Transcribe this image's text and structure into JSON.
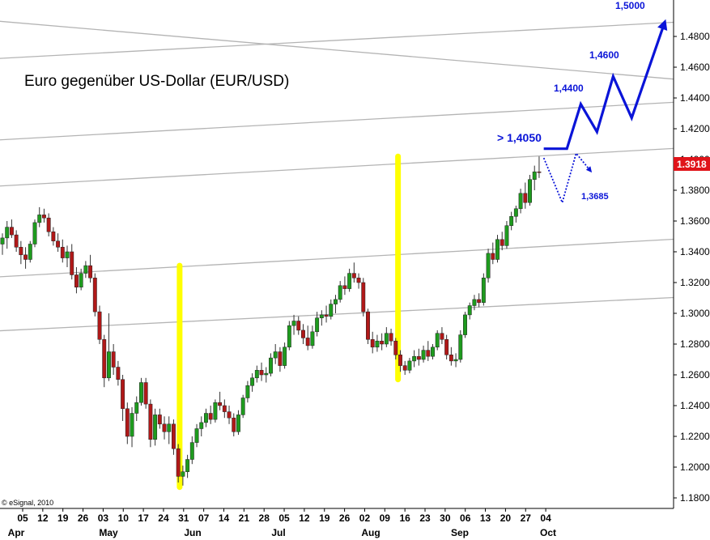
{
  "chart_data": {
    "type": "candlestick",
    "title": "Euro gegenüber US-Dollar  (EUR/USD)",
    "source": "© eSignal, 2010",
    "ylim": [
      1.18,
      1.49
    ],
    "y_ticks": [
      "1.1800",
      "1.2000",
      "1.2200",
      "1.2400",
      "1.2600",
      "1.2800",
      "1.3000",
      "1.3200",
      "1.3400",
      "1.3600",
      "1.3800",
      "1.4000",
      "1.4200",
      "1.4400",
      "1.4600",
      "1.4800"
    ],
    "x_day_ticks": [
      "05",
      "12",
      "19",
      "26",
      "03",
      "10",
      "17",
      "24",
      "31",
      "07",
      "14",
      "21",
      "28",
      "05",
      "12",
      "19",
      "26",
      "02",
      "09",
      "16",
      "23",
      "30",
      "06",
      "13",
      "20",
      "27",
      "04"
    ],
    "x_month_labels": [
      "Apr",
      "May",
      "Jun",
      "Jul",
      "Aug",
      "Sep",
      "Oct"
    ],
    "last_price": "1.3918",
    "annotations": {
      "resistance": "> 1,4050",
      "target1": "1,4400",
      "target2": "1,4600",
      "target3": "1,5000",
      "down": "1,3685"
    },
    "colors": {
      "bull": "#1e9b1e",
      "bear": "#b01818",
      "trendline": "#b4b4b4",
      "highlight": "#ffff00",
      "projection": "#0a14d8",
      "last_price_bg": "#e0141a"
    },
    "candles": [
      {
        "o": 1.345,
        "h": 1.352,
        "l": 1.338,
        "c": 1.349
      },
      {
        "o": 1.349,
        "h": 1.36,
        "l": 1.342,
        "c": 1.356
      },
      {
        "o": 1.356,
        "h": 1.361,
        "l": 1.349,
        "c": 1.351
      },
      {
        "o": 1.351,
        "h": 1.354,
        "l": 1.34,
        "c": 1.343
      },
      {
        "o": 1.343,
        "h": 1.347,
        "l": 1.332,
        "c": 1.338
      },
      {
        "o": 1.338,
        "h": 1.343,
        "l": 1.329,
        "c": 1.335
      },
      {
        "o": 1.335,
        "h": 1.347,
        "l": 1.333,
        "c": 1.345
      },
      {
        "o": 1.345,
        "h": 1.361,
        "l": 1.343,
        "c": 1.359
      },
      {
        "o": 1.359,
        "h": 1.369,
        "l": 1.356,
        "c": 1.364
      },
      {
        "o": 1.364,
        "h": 1.368,
        "l": 1.359,
        "c": 1.362
      },
      {
        "o": 1.362,
        "h": 1.365,
        "l": 1.35,
        "c": 1.353
      },
      {
        "o": 1.353,
        "h": 1.356,
        "l": 1.344,
        "c": 1.347
      },
      {
        "o": 1.347,
        "h": 1.352,
        "l": 1.34,
        "c": 1.343
      },
      {
        "o": 1.343,
        "h": 1.348,
        "l": 1.333,
        "c": 1.336
      },
      {
        "o": 1.336,
        "h": 1.344,
        "l": 1.33,
        "c": 1.34
      },
      {
        "o": 1.34,
        "h": 1.345,
        "l": 1.322,
        "c": 1.325
      },
      {
        "o": 1.325,
        "h": 1.33,
        "l": 1.313,
        "c": 1.317
      },
      {
        "o": 1.317,
        "h": 1.329,
        "l": 1.315,
        "c": 1.326
      },
      {
        "o": 1.326,
        "h": 1.334,
        "l": 1.323,
        "c": 1.331
      },
      {
        "o": 1.331,
        "h": 1.338,
        "l": 1.32,
        "c": 1.323
      },
      {
        "o": 1.323,
        "h": 1.326,
        "l": 1.298,
        "c": 1.301
      },
      {
        "o": 1.301,
        "h": 1.305,
        "l": 1.28,
        "c": 1.283
      },
      {
        "o": 1.283,
        "h": 1.286,
        "l": 1.252,
        "c": 1.258
      },
      {
        "o": 1.258,
        "h": 1.3,
        "l": 1.256,
        "c": 1.275
      },
      {
        "o": 1.275,
        "h": 1.28,
        "l": 1.26,
        "c": 1.265
      },
      {
        "o": 1.265,
        "h": 1.269,
        "l": 1.253,
        "c": 1.257
      },
      {
        "o": 1.257,
        "h": 1.26,
        "l": 1.23,
        "c": 1.238
      },
      {
        "o": 1.238,
        "h": 1.242,
        "l": 1.215,
        "c": 1.22
      },
      {
        "o": 1.22,
        "h": 1.239,
        "l": 1.213,
        "c": 1.235
      },
      {
        "o": 1.235,
        "h": 1.246,
        "l": 1.23,
        "c": 1.242
      },
      {
        "o": 1.242,
        "h": 1.258,
        "l": 1.24,
        "c": 1.255
      },
      {
        "o": 1.255,
        "h": 1.258,
        "l": 1.238,
        "c": 1.241
      },
      {
        "o": 1.241,
        "h": 1.244,
        "l": 1.213,
        "c": 1.218
      },
      {
        "o": 1.218,
        "h": 1.238,
        "l": 1.214,
        "c": 1.234
      },
      {
        "o": 1.234,
        "h": 1.238,
        "l": 1.225,
        "c": 1.228
      },
      {
        "o": 1.228,
        "h": 1.233,
        "l": 1.218,
        "c": 1.223
      },
      {
        "o": 1.223,
        "h": 1.233,
        "l": 1.215,
        "c": 1.228
      },
      {
        "o": 1.228,
        "h": 1.231,
        "l": 1.208,
        "c": 1.212
      },
      {
        "o": 1.212,
        "h": 1.215,
        "l": 1.19,
        "c": 1.194
      },
      {
        "o": 1.194,
        "h": 1.201,
        "l": 1.188,
        "c": 1.197
      },
      {
        "o": 1.197,
        "h": 1.208,
        "l": 1.193,
        "c": 1.205
      },
      {
        "o": 1.205,
        "h": 1.22,
        "l": 1.202,
        "c": 1.216
      },
      {
        "o": 1.216,
        "h": 1.228,
        "l": 1.213,
        "c": 1.225
      },
      {
        "o": 1.225,
        "h": 1.233,
        "l": 1.22,
        "c": 1.229
      },
      {
        "o": 1.229,
        "h": 1.238,
        "l": 1.226,
        "c": 1.235
      },
      {
        "o": 1.235,
        "h": 1.24,
        "l": 1.228,
        "c": 1.231
      },
      {
        "o": 1.231,
        "h": 1.244,
        "l": 1.229,
        "c": 1.242
      },
      {
        "o": 1.242,
        "h": 1.249,
        "l": 1.237,
        "c": 1.24
      },
      {
        "o": 1.24,
        "h": 1.244,
        "l": 1.232,
        "c": 1.236
      },
      {
        "o": 1.236,
        "h": 1.24,
        "l": 1.228,
        "c": 1.232
      },
      {
        "o": 1.232,
        "h": 1.235,
        "l": 1.22,
        "c": 1.223
      },
      {
        "o": 1.223,
        "h": 1.237,
        "l": 1.221,
        "c": 1.234
      },
      {
        "o": 1.234,
        "h": 1.247,
        "l": 1.232,
        "c": 1.245
      },
      {
        "o": 1.245,
        "h": 1.256,
        "l": 1.242,
        "c": 1.253
      },
      {
        "o": 1.253,
        "h": 1.261,
        "l": 1.249,
        "c": 1.258
      },
      {
        "o": 1.258,
        "h": 1.266,
        "l": 1.255,
        "c": 1.263
      },
      {
        "o": 1.263,
        "h": 1.268,
        "l": 1.256,
        "c": 1.26
      },
      {
        "o": 1.26,
        "h": 1.265,
        "l": 1.255,
        "c": 1.261
      },
      {
        "o": 1.261,
        "h": 1.274,
        "l": 1.259,
        "c": 1.271
      },
      {
        "o": 1.271,
        "h": 1.28,
        "l": 1.267,
        "c": 1.275
      },
      {
        "o": 1.275,
        "h": 1.278,
        "l": 1.262,
        "c": 1.266
      },
      {
        "o": 1.266,
        "h": 1.281,
        "l": 1.264,
        "c": 1.278
      },
      {
        "o": 1.278,
        "h": 1.295,
        "l": 1.276,
        "c": 1.292
      },
      {
        "o": 1.292,
        "h": 1.299,
        "l": 1.286,
        "c": 1.295
      },
      {
        "o": 1.295,
        "h": 1.298,
        "l": 1.286,
        "c": 1.289
      },
      {
        "o": 1.289,
        "h": 1.293,
        "l": 1.28,
        "c": 1.284
      },
      {
        "o": 1.284,
        "h": 1.292,
        "l": 1.276,
        "c": 1.279
      },
      {
        "o": 1.279,
        "h": 1.292,
        "l": 1.277,
        "c": 1.288
      },
      {
        "o": 1.288,
        "h": 1.301,
        "l": 1.285,
        "c": 1.297
      },
      {
        "o": 1.297,
        "h": 1.302,
        "l": 1.292,
        "c": 1.299
      },
      {
        "o": 1.299,
        "h": 1.305,
        "l": 1.294,
        "c": 1.298
      },
      {
        "o": 1.298,
        "h": 1.309,
        "l": 1.296,
        "c": 1.306
      },
      {
        "o": 1.306,
        "h": 1.312,
        "l": 1.3,
        "c": 1.309
      },
      {
        "o": 1.309,
        "h": 1.321,
        "l": 1.307,
        "c": 1.318
      },
      {
        "o": 1.318,
        "h": 1.324,
        "l": 1.312,
        "c": 1.316
      },
      {
        "o": 1.316,
        "h": 1.329,
        "l": 1.314,
        "c": 1.326
      },
      {
        "o": 1.326,
        "h": 1.333,
        "l": 1.32,
        "c": 1.323
      },
      {
        "o": 1.323,
        "h": 1.326,
        "l": 1.316,
        "c": 1.32
      },
      {
        "o": 1.32,
        "h": 1.323,
        "l": 1.298,
        "c": 1.301
      },
      {
        "o": 1.301,
        "h": 1.303,
        "l": 1.28,
        "c": 1.283
      },
      {
        "o": 1.283,
        "h": 1.288,
        "l": 1.274,
        "c": 1.278
      },
      {
        "o": 1.278,
        "h": 1.286,
        "l": 1.275,
        "c": 1.282
      },
      {
        "o": 1.282,
        "h": 1.287,
        "l": 1.276,
        "c": 1.28
      },
      {
        "o": 1.28,
        "h": 1.291,
        "l": 1.278,
        "c": 1.287
      },
      {
        "o": 1.287,
        "h": 1.29,
        "l": 1.279,
        "c": 1.282
      },
      {
        "o": 1.282,
        "h": 1.284,
        "l": 1.27,
        "c": 1.273
      },
      {
        "o": 1.273,
        "h": 1.276,
        "l": 1.262,
        "c": 1.266
      },
      {
        "o": 1.266,
        "h": 1.269,
        "l": 1.26,
        "c": 1.263
      },
      {
        "o": 1.263,
        "h": 1.271,
        "l": 1.261,
        "c": 1.269
      },
      {
        "o": 1.269,
        "h": 1.276,
        "l": 1.265,
        "c": 1.272
      },
      {
        "o": 1.272,
        "h": 1.277,
        "l": 1.266,
        "c": 1.27
      },
      {
        "o": 1.27,
        "h": 1.279,
        "l": 1.268,
        "c": 1.276
      },
      {
        "o": 1.276,
        "h": 1.282,
        "l": 1.269,
        "c": 1.272
      },
      {
        "o": 1.272,
        "h": 1.28,
        "l": 1.27,
        "c": 1.278
      },
      {
        "o": 1.278,
        "h": 1.289,
        "l": 1.276,
        "c": 1.287
      },
      {
        "o": 1.287,
        "h": 1.291,
        "l": 1.28,
        "c": 1.283
      },
      {
        "o": 1.283,
        "h": 1.286,
        "l": 1.27,
        "c": 1.273
      },
      {
        "o": 1.273,
        "h": 1.278,
        "l": 1.266,
        "c": 1.269
      },
      {
        "o": 1.269,
        "h": 1.274,
        "l": 1.265,
        "c": 1.27
      },
      {
        "o": 1.27,
        "h": 1.289,
        "l": 1.268,
        "c": 1.286
      },
      {
        "o": 1.286,
        "h": 1.301,
        "l": 1.284,
        "c": 1.299
      },
      {
        "o": 1.299,
        "h": 1.307,
        "l": 1.296,
        "c": 1.305
      },
      {
        "o": 1.305,
        "h": 1.312,
        "l": 1.302,
        "c": 1.309
      },
      {
        "o": 1.309,
        "h": 1.313,
        "l": 1.304,
        "c": 1.307
      },
      {
        "o": 1.307,
        "h": 1.326,
        "l": 1.305,
        "c": 1.323
      },
      {
        "o": 1.323,
        "h": 1.342,
        "l": 1.32,
        "c": 1.339
      },
      {
        "o": 1.339,
        "h": 1.346,
        "l": 1.332,
        "c": 1.335
      },
      {
        "o": 1.335,
        "h": 1.351,
        "l": 1.333,
        "c": 1.348
      },
      {
        "o": 1.348,
        "h": 1.353,
        "l": 1.341,
        "c": 1.344
      },
      {
        "o": 1.344,
        "h": 1.36,
        "l": 1.342,
        "c": 1.357
      },
      {
        "o": 1.357,
        "h": 1.366,
        "l": 1.354,
        "c": 1.363
      },
      {
        "o": 1.363,
        "h": 1.37,
        "l": 1.359,
        "c": 1.368
      },
      {
        "o": 1.368,
        "h": 1.381,
        "l": 1.365,
        "c": 1.378
      },
      {
        "o": 1.378,
        "h": 1.385,
        "l": 1.368,
        "c": 1.372
      },
      {
        "o": 1.372,
        "h": 1.39,
        "l": 1.37,
        "c": 1.387
      },
      {
        "o": 1.387,
        "h": 1.396,
        "l": 1.38,
        "c": 1.392
      },
      {
        "o": 1.392,
        "h": 1.402,
        "l": 1.388,
        "c": 1.3918
      }
    ],
    "trend_lines": [
      {
        "from": [
          -5,
          1.491
        ],
        "to": [
          150,
          1.451
        ]
      },
      {
        "from": [
          -5,
          1.465
        ],
        "to": [
          150,
          1.49
        ]
      },
      {
        "from": [
          -5,
          1.412
        ],
        "to": [
          150,
          1.438
        ]
      },
      {
        "from": [
          -5,
          1.382
        ],
        "to": [
          150,
          1.408
        ]
      },
      {
        "from": [
          -5,
          1.323
        ],
        "to": [
          150,
          1.349
        ]
      },
      {
        "from": [
          -5,
          1.288
        ],
        "to": [
          150,
          1.311
        ]
      }
    ],
    "highlight_bars": [
      {
        "x": 38.3,
        "from": 1.187,
        "to": 1.331
      },
      {
        "x": 85.5,
        "from": 1.257,
        "to": 1.402
      }
    ],
    "projection_up": [
      [
        117,
        1.407
      ],
      [
        122,
        1.407
      ],
      [
        125,
        1.436
      ],
      [
        128.5,
        1.418
      ],
      [
        132,
        1.454
      ],
      [
        136,
        1.427
      ],
      [
        143,
        1.488
      ]
    ],
    "projection_down": [
      [
        117,
        1.401
      ],
      [
        121,
        1.372
      ],
      [
        124,
        1.404
      ],
      [
        127,
        1.393
      ]
    ]
  }
}
